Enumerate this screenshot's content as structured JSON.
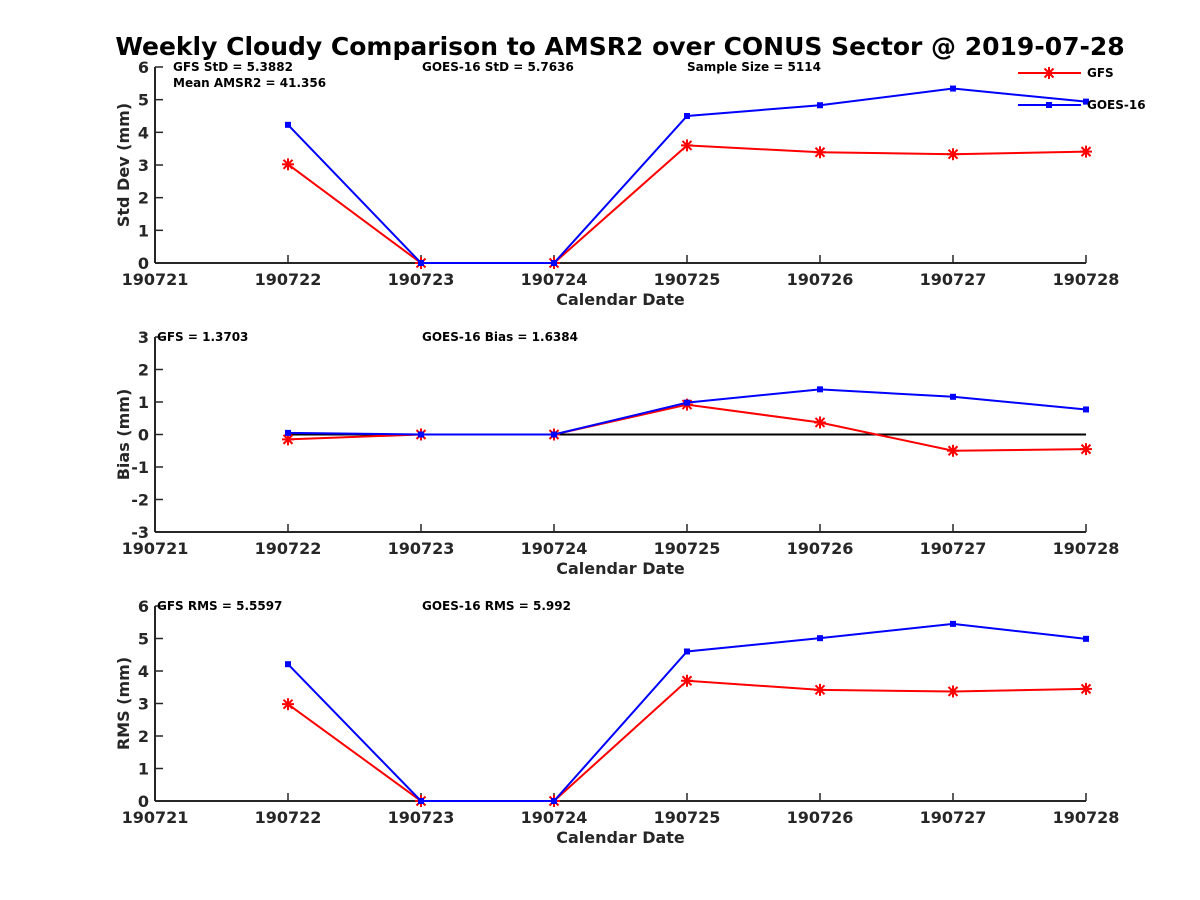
{
  "title": "Weekly Cloudy Comparison to AMSR2 over CONUS Sector @ 2019-07-28",
  "legend": {
    "items": [
      {
        "name": "GFS",
        "color": "#ff0000",
        "marker": "asterisk"
      },
      {
        "name": "GOES-16",
        "color": "#0000ff",
        "marker": "square"
      }
    ]
  },
  "chart_data": [
    {
      "type": "line",
      "title": "Weekly Cloudy Comparison to AMSR2 over CONUS Sector @ 2019-07-28",
      "xlabel": "Calendar Date",
      "ylabel": "Std Dev (mm)",
      "x_ticks": [
        "190721",
        "190722",
        "190723",
        "190724",
        "190725",
        "190726",
        "190727",
        "190728"
      ],
      "ylim": [
        0,
        6
      ],
      "y_ticks": [
        "0",
        "1",
        "2",
        "3",
        "4",
        "5",
        "6"
      ],
      "x": [
        190722,
        190723,
        190724,
        190725,
        190726,
        190727,
        190728
      ],
      "series": [
        {
          "name": "GFS",
          "color": "#ff0000",
          "marker": "asterisk",
          "values": [
            3.02,
            0,
            0,
            3.6,
            3.39,
            3.33,
            3.41
          ]
        },
        {
          "name": "GOES-16",
          "color": "#0000ff",
          "marker": "square",
          "values": [
            4.23,
            0,
            0,
            4.5,
            4.83,
            5.34,
            4.94
          ]
        }
      ],
      "annotations": [
        "GFS StD = 5.3882",
        "Mean AMSR2 = 41.356",
        "GOES-16 StD = 5.7636",
        "Sample Size = 5114"
      ],
      "zero_line": false,
      "grid": false,
      "legend_position": "top-right"
    },
    {
      "type": "line",
      "xlabel": "Calendar Date",
      "ylabel": "Bias (mm)",
      "x_ticks": [
        "190721",
        "190722",
        "190723",
        "190724",
        "190725",
        "190726",
        "190727",
        "190728"
      ],
      "ylim": [
        -3,
        3
      ],
      "y_ticks": [
        "-3",
        "-2",
        "-1",
        "0",
        "1",
        "2",
        "3"
      ],
      "x": [
        190722,
        190723,
        190724,
        190725,
        190726,
        190727,
        190728
      ],
      "series": [
        {
          "name": "GFS",
          "color": "#ff0000",
          "marker": "asterisk",
          "values": [
            -0.15,
            0,
            0,
            0.92,
            0.37,
            -0.5,
            -0.45
          ]
        },
        {
          "name": "GOES-16",
          "color": "#0000ff",
          "marker": "square",
          "values": [
            0.05,
            0,
            0,
            0.98,
            1.39,
            1.16,
            0.77
          ]
        }
      ],
      "annotations": [
        "GFS = 1.3703",
        "GOES-16 Bias  = 1.6384"
      ],
      "zero_line": true,
      "grid": false
    },
    {
      "type": "line",
      "xlabel": "Calendar Date",
      "ylabel": "RMS (mm)",
      "x_ticks": [
        "190721",
        "190722",
        "190723",
        "190724",
        "190725",
        "190726",
        "190727",
        "190728"
      ],
      "ylim": [
        0,
        6
      ],
      "y_ticks": [
        "0",
        "1",
        "2",
        "3",
        "4",
        "5",
        "6"
      ],
      "x": [
        190722,
        190723,
        190724,
        190725,
        190726,
        190727,
        190728
      ],
      "series": [
        {
          "name": "GFS",
          "color": "#ff0000",
          "marker": "asterisk",
          "values": [
            2.98,
            0,
            0,
            3.7,
            3.42,
            3.37,
            3.45
          ]
        },
        {
          "name": "GOES-16",
          "color": "#0000ff",
          "marker": "square",
          "values": [
            4.21,
            0,
            0,
            4.6,
            5.01,
            5.45,
            4.99
          ]
        }
      ],
      "annotations": [
        "GFS RMS = 5.5597",
        "GOES-16 RMS = 5.992"
      ],
      "zero_line": false,
      "grid": false
    }
  ]
}
